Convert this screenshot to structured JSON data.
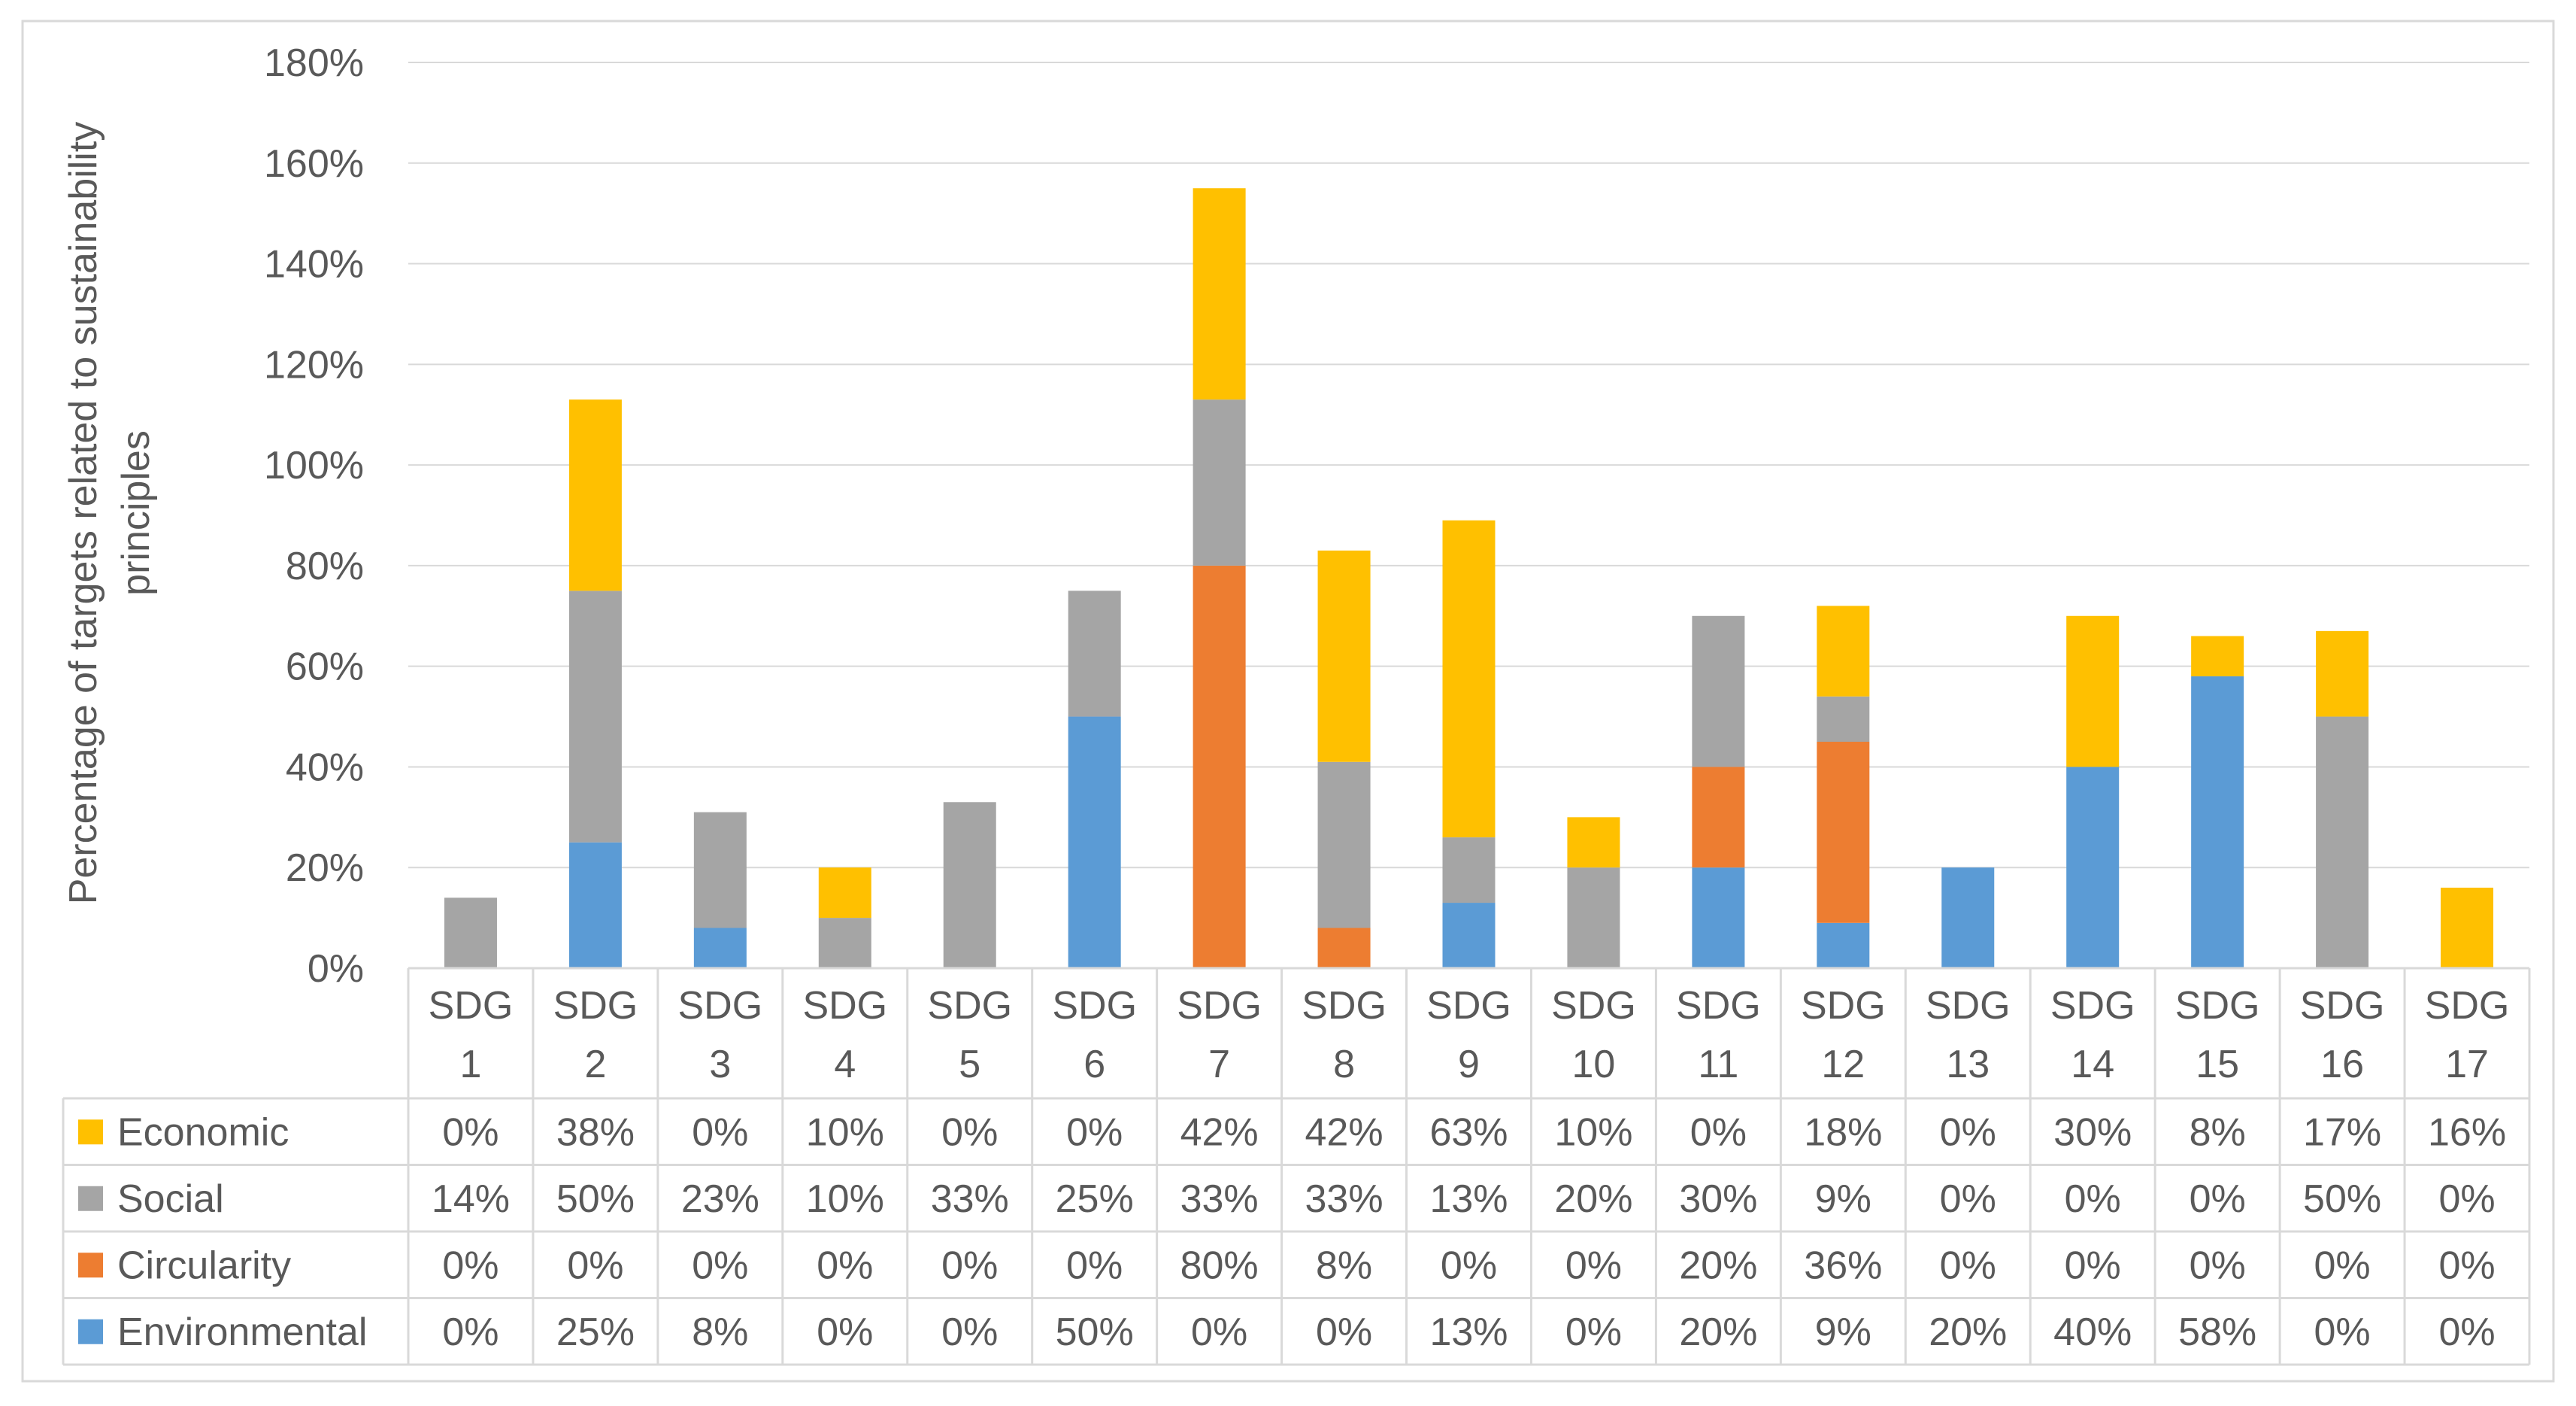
{
  "chart_data": {
    "type": "bar",
    "stacked": true,
    "title": "",
    "xlabel": "",
    "ylabel": "Percentage of targets related to sustainability principles",
    "ylabel_lines": [
      "Percentage of targets related to sustainability",
      "principles"
    ],
    "ylim": [
      0,
      180
    ],
    "y_ticks": [
      "0%",
      "20%",
      "40%",
      "60%",
      "80%",
      "100%",
      "120%",
      "140%",
      "160%",
      "180%"
    ],
    "y_tick_values": [
      0,
      20,
      40,
      60,
      80,
      100,
      120,
      140,
      160,
      180
    ],
    "grid": true,
    "legend_placement": "data-table",
    "categories": [
      [
        "SDG",
        "1"
      ],
      [
        "SDG",
        "2"
      ],
      [
        "SDG",
        "3"
      ],
      [
        "SDG",
        "4"
      ],
      [
        "SDG",
        "5"
      ],
      [
        "SDG",
        "6"
      ],
      [
        "SDG",
        "7"
      ],
      [
        "SDG",
        "8"
      ],
      [
        "SDG",
        "9"
      ],
      [
        "SDG",
        "10"
      ],
      [
        "SDG",
        "11"
      ],
      [
        "SDG",
        "12"
      ],
      [
        "SDG",
        "13"
      ],
      [
        "SDG",
        "14"
      ],
      [
        "SDG",
        "15"
      ],
      [
        "SDG",
        "16"
      ],
      [
        "SDG",
        "17"
      ]
    ],
    "series": [
      {
        "name": "Environmental",
        "color": "#5B9BD5",
        "values": [
          0,
          25,
          8,
          0,
          0,
          50,
          0,
          0,
          13,
          0,
          20,
          9,
          20,
          40,
          58,
          0,
          0
        ],
        "labels": [
          "0%",
          "25%",
          "8%",
          "0%",
          "0%",
          "50%",
          "0%",
          "0%",
          "13%",
          "0%",
          "20%",
          "9%",
          "20%",
          "40%",
          "58%",
          "0%",
          "0%"
        ]
      },
      {
        "name": "Circularity",
        "color": "#ED7D31",
        "values": [
          0,
          0,
          0,
          0,
          0,
          0,
          80,
          8,
          0,
          0,
          20,
          36,
          0,
          0,
          0,
          0,
          0
        ],
        "labels": [
          "0%",
          "0%",
          "0%",
          "0%",
          "0%",
          "0%",
          "80%",
          "8%",
          "0%",
          "0%",
          "20%",
          "36%",
          "0%",
          "0%",
          "0%",
          "0%",
          "0%"
        ]
      },
      {
        "name": "Social",
        "color": "#A5A5A5",
        "values": [
          14,
          50,
          23,
          10,
          33,
          25,
          33,
          33,
          13,
          20,
          30,
          9,
          0,
          0,
          0,
          50,
          0
        ],
        "labels": [
          "14%",
          "50%",
          "23%",
          "10%",
          "33%",
          "25%",
          "33%",
          "33%",
          "13%",
          "20%",
          "30%",
          "9%",
          "0%",
          "0%",
          "0%",
          "50%",
          "0%"
        ]
      },
      {
        "name": "Economic",
        "color": "#FFC000",
        "values": [
          0,
          38,
          0,
          10,
          0,
          0,
          42,
          42,
          63,
          10,
          0,
          18,
          0,
          30,
          8,
          17,
          16
        ],
        "labels": [
          "0%",
          "38%",
          "0%",
          "10%",
          "0%",
          "0%",
          "42%",
          "42%",
          "63%",
          "10%",
          "0%",
          "18%",
          "0%",
          "30%",
          "8%",
          "17%",
          "16%"
        ]
      }
    ],
    "table_row_order": [
      "Economic",
      "Social",
      "Circularity",
      "Environmental"
    ]
  }
}
